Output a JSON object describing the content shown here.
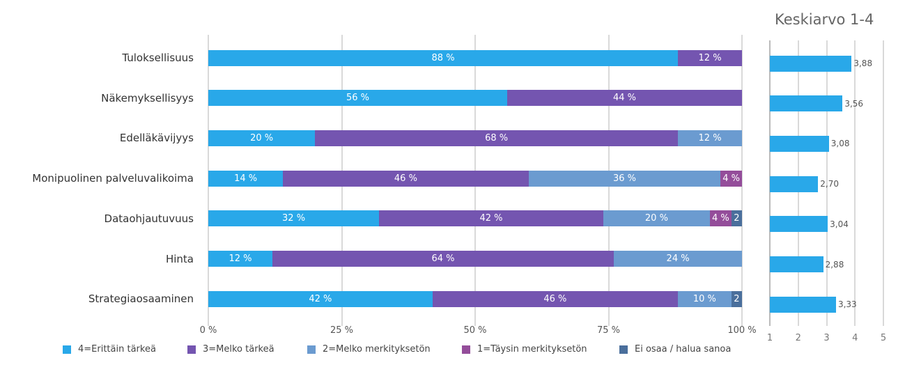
{
  "chart_data": [
    {
      "type": "bar",
      "orientation": "horizontal",
      "stacked": true,
      "categories": [
        "Tuloksellisuus",
        "Näkemyksellisyys",
        "Edelläkävijyys",
        "Monipuolinen palveluvalikoima",
        "Dataohjautuvuus",
        "Hinta",
        "Strategiaosaaminen"
      ],
      "series": [
        {
          "name": "4=Erittäin tärkeä",
          "color": "#29a8e9",
          "values": [
            88,
            56,
            20,
            14,
            32,
            12,
            42
          ]
        },
        {
          "name": "3=Melko tärkeä",
          "color": "#7455b0",
          "values": [
            12,
            44,
            68,
            46,
            42,
            64,
            46
          ]
        },
        {
          "name": "2=Melko merkityksetön",
          "color": "#6b9bd0",
          "values": [
            0,
            0,
            12,
            36,
            20,
            24,
            10
          ]
        },
        {
          "name": "1=Täysin merkityksetön",
          "color": "#944d9a",
          "values": [
            0,
            0,
            0,
            4,
            4,
            0,
            0
          ]
        },
        {
          "name": "Ei osaa / halua sanoa",
          "color": "#4a6f9c",
          "values": [
            0,
            0,
            0,
            0,
            2,
            0,
            2
          ]
        }
      ],
      "data_labels": [
        [
          "88 %",
          "12 %",
          "",
          "",
          ""
        ],
        [
          "56 %",
          "44 %",
          "",
          "",
          ""
        ],
        [
          "20 %",
          "68 %",
          "12 %",
          "",
          ""
        ],
        [
          "14 %",
          "46 %",
          "36 %",
          "4 %",
          ""
        ],
        [
          "32 %",
          "42 %",
          "20 %",
          "4 %",
          "2"
        ],
        [
          "12 %",
          "64 %",
          "24 %",
          "",
          ""
        ],
        [
          "42 %",
          "46 %",
          "10 %",
          "",
          "2"
        ]
      ],
      "xticks": [
        "0 %",
        "25 %",
        "50 %",
        "75 %",
        "100 %"
      ],
      "xlim": [
        0,
        100
      ],
      "grid": true,
      "legend": "bottom"
    },
    {
      "type": "bar",
      "orientation": "horizontal",
      "title": "Keskiarvo 1-4",
      "categories": [
        "Tuloksellisuus",
        "Näkemyksellisyys",
        "Edelläkävijyys",
        "Monipuolinen palveluvalikoima",
        "Dataohjautuvuus",
        "Hinta",
        "Strategiaosaaminen"
      ],
      "values": [
        3.88,
        3.56,
        3.08,
        2.7,
        3.04,
        2.88,
        3.33
      ],
      "labels": [
        "3,88",
        "3,56",
        "3,08",
        "2,70",
        "3,04",
        "2,88",
        "3,33"
      ],
      "color": "#29a8e9",
      "xticks": [
        "1",
        "2",
        "3",
        "4",
        "5"
      ],
      "xlim": [
        1,
        5
      ],
      "grid": true
    }
  ]
}
